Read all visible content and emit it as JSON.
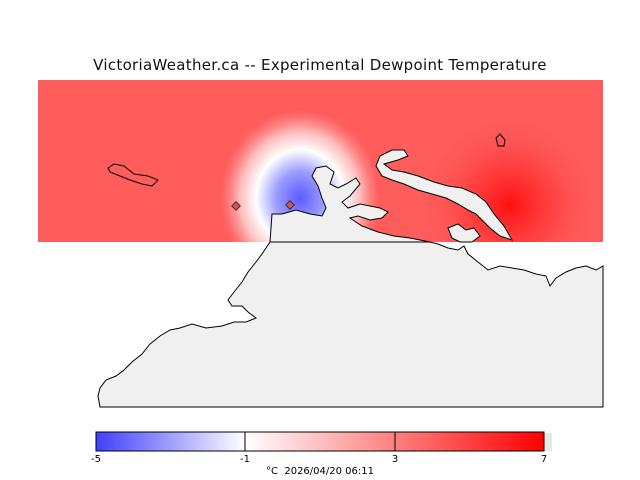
{
  "title": "VictoriaWeather.ca -- Experimental Dewpoint Temperature",
  "colorbar": {
    "min": -5,
    "max": 7,
    "ticks": [
      "-5",
      "-1",
      "3",
      "7"
    ],
    "unit": "°C",
    "timestamp": "2026/04/20 06:11",
    "cold_color": "#4040ff",
    "neutral_color": "#ffffff",
    "warm_color": "#ff0000"
  },
  "land_color": "#f0f0f0",
  "station_marker_color": "#e05050"
}
